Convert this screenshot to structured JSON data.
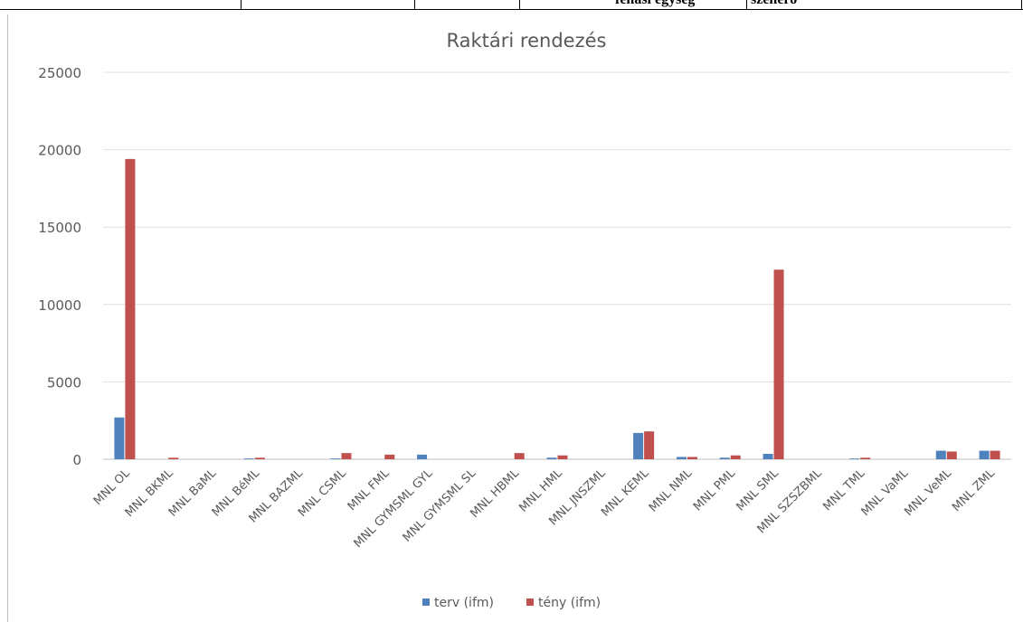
{
  "top_table": {
    "cells": [
      "fenasi egyseg",
      "szenero"
    ]
  },
  "chart_data": {
    "type": "bar",
    "title": "Raktári rendezés",
    "xlabel": "",
    "ylabel": "",
    "ylim": [
      0,
      25000
    ],
    "yticks": [
      0,
      5000,
      10000,
      15000,
      20000,
      25000
    ],
    "grid": true,
    "legend": "bottom",
    "categories": [
      "MNL OL",
      "MNL BKML",
      "MNL BaML",
      "MNL BéML",
      "MNL BAZML",
      "MNL CSML",
      "MNL FML",
      "MNL GYMSML GYL",
      "MNL GYMSML SL",
      "MNL HBML",
      "MNL HML",
      "MNL JNSZML",
      "MNL KEML",
      "MNL NML",
      "MNL PML",
      "MNL SML",
      "MNL SZSZBML",
      "MNL TML",
      "MNL VaML",
      "MNL VeML",
      "MNL ZML"
    ],
    "series": [
      {
        "name": "terv (ifm)",
        "color": "#4f81bd",
        "values": [
          2700,
          0,
          0,
          50,
          0,
          50,
          0,
          300,
          0,
          0,
          100,
          0,
          1700,
          150,
          100,
          350,
          0,
          50,
          0,
          550,
          550
        ]
      },
      {
        "name": "tény (ifm)",
        "color": "#c0504d",
        "values": [
          19400,
          100,
          0,
          100,
          0,
          400,
          300,
          0,
          0,
          400,
          250,
          0,
          1800,
          150,
          250,
          12250,
          0,
          100,
          0,
          500,
          550
        ]
      }
    ]
  }
}
